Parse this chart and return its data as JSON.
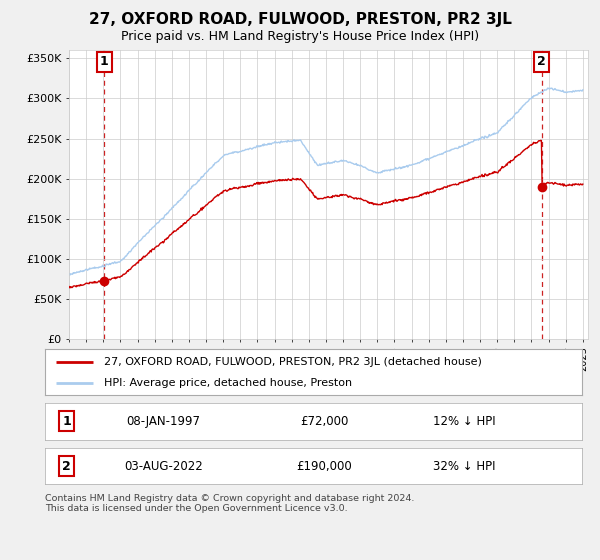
{
  "title": "27, OXFORD ROAD, FULWOOD, PRESTON, PR2 3JL",
  "subtitle": "Price paid vs. HM Land Registry's House Price Index (HPI)",
  "background_color": "#f0f0f0",
  "plot_bg_color": "#ffffff",
  "ylim": [
    0,
    360000
  ],
  "yticks": [
    0,
    50000,
    100000,
    150000,
    200000,
    250000,
    300000,
    350000
  ],
  "ytick_labels": [
    "£0",
    "£50K",
    "£100K",
    "£150K",
    "£200K",
    "£250K",
    "£300K",
    "£350K"
  ],
  "sale1_year": 1997.05,
  "sale1_price": 72000,
  "sale1_label": "1",
  "sale2_year": 2022.59,
  "sale2_price": 190000,
  "sale2_label": "2",
  "hpi_color": "#aaccee",
  "price_color": "#cc0000",
  "dashed_line_color": "#cc2222",
  "legend_entry1": "27, OXFORD ROAD, FULWOOD, PRESTON, PR2 3JL (detached house)",
  "legend_entry2": "HPI: Average price, detached house, Preston",
  "table_row1": [
    "1",
    "08-JAN-1997",
    "£72,000",
    "12% ↓ HPI"
  ],
  "table_row2": [
    "2",
    "03-AUG-2022",
    "£190,000",
    "32% ↓ HPI"
  ],
  "footer": "Contains HM Land Registry data © Crown copyright and database right 2024.\nThis data is licensed under the Open Government Licence v3.0."
}
